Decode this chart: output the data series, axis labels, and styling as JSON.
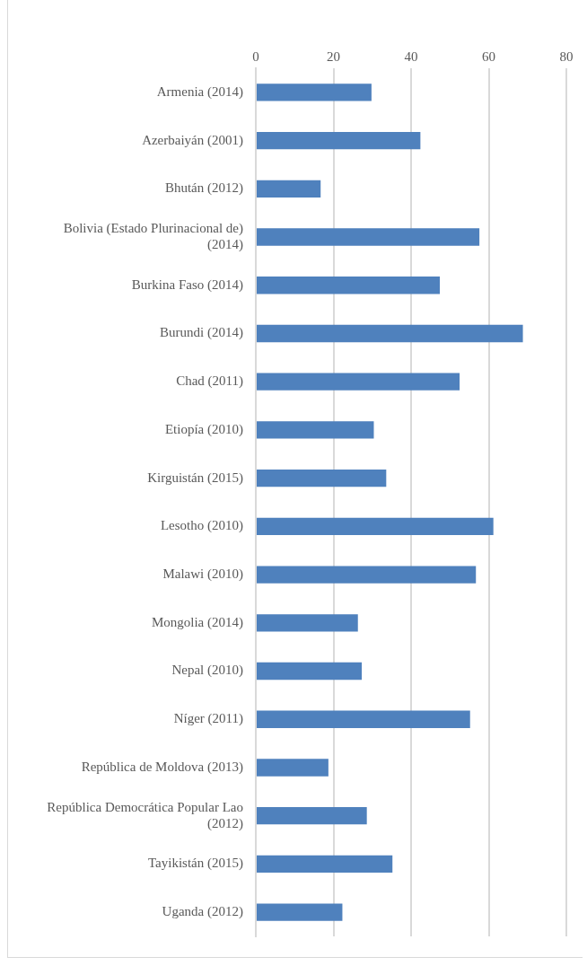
{
  "chart_data": {
    "type": "bar",
    "orientation": "horizontal",
    "categories": [
      "Armenia (2014)",
      "Azerbaiyán (2001)",
      "Bhután (2012)",
      "Bolivia (Estado Plurinacional de) (2014)",
      "Burkina Faso (2014)",
      "Burundi (2014)",
      "Chad (2011)",
      "Etiopía (2010)",
      "Kirguistán (2015)",
      "Lesotho (2010)",
      "Malawi (2010)",
      "Mongolia (2014)",
      "Nepal (2010)",
      "Níger (2011)",
      "República de Moldova (2013)",
      "República Democrática Popular Lao (2012)",
      "Tayikistán (2015)",
      "Uganda (2012)"
    ],
    "values": [
      29.8,
      42.4,
      16.7,
      57.6,
      47.4,
      68.8,
      52.5,
      30.4,
      33.6,
      61.2,
      56.7,
      26.3,
      27.3,
      55.2,
      18.7,
      28.6,
      35.2,
      22.3
    ],
    "color": "#4f81bd",
    "xlim": [
      0,
      80
    ],
    "xticks": [
      0,
      20,
      40,
      60,
      80
    ],
    "grid": "x",
    "legend": false
  }
}
